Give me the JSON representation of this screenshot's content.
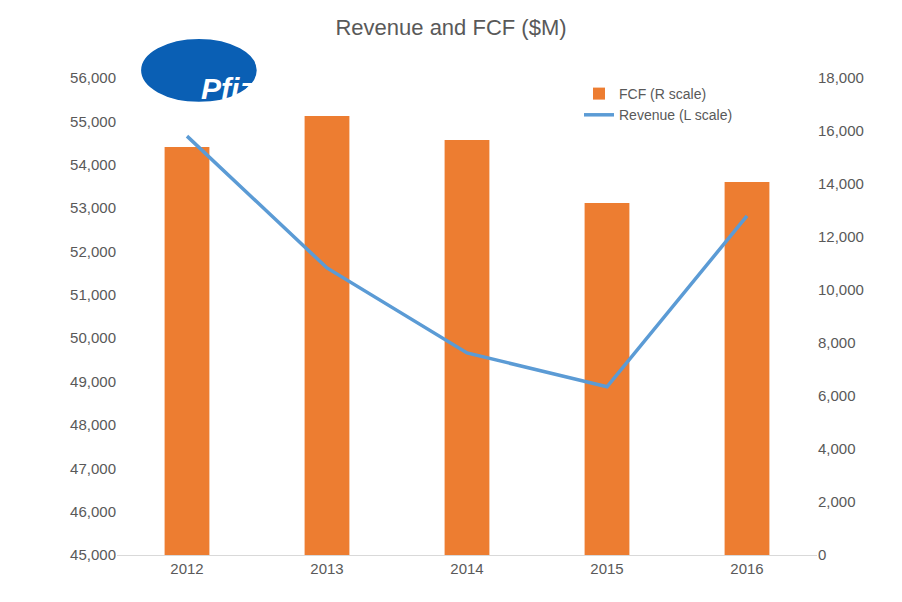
{
  "chart_data": {
    "type": "bar",
    "title": "Revenue and FCF ($M)",
    "annotations": [
      "Pfizer"
    ],
    "categories": [
      "2012",
      "2013",
      "2014",
      "2015",
      "2016"
    ],
    "series": [
      {
        "name": "FCF (R scale)",
        "type": "bar",
        "axis": "y2",
        "color": "#ed7d31",
        "values": [
          15400,
          16570,
          15660,
          13280,
          14080
        ]
      },
      {
        "name": "Revenue (L scale)",
        "type": "line",
        "axis": "y",
        "color": "#5b9bd5",
        "values": [
          54660,
          51620,
          49660,
          48880,
          52820
        ]
      }
    ],
    "ylim": [
      45000,
      56000
    ],
    "yticks": [
      {
        "value": 45000,
        "label": "45,000"
      },
      {
        "value": 46000,
        "label": "46,000"
      },
      {
        "value": 47000,
        "label": "47,000"
      },
      {
        "value": 48000,
        "label": "48,000"
      },
      {
        "value": 49000,
        "label": "49,000"
      },
      {
        "value": 50000,
        "label": "50,000"
      },
      {
        "value": 51000,
        "label": "51,000"
      },
      {
        "value": 52000,
        "label": "52,000"
      },
      {
        "value": 53000,
        "label": "53,000"
      },
      {
        "value": 54000,
        "label": "54,000"
      },
      {
        "value": 55000,
        "label": "55,000"
      },
      {
        "value": 56000,
        "label": "56,000"
      }
    ],
    "y2lim": [
      0,
      18000
    ],
    "y2ticks": [
      0,
      {
        "value": 2000,
        "label": "2,000"
      },
      {
        "value": 4000,
        "label": "4,000"
      },
      {
        "value": 6000,
        "label": "6,000"
      },
      {
        "value": 8000,
        "label": "8,000"
      },
      {
        "value": 10000,
        "label": "10,000"
      },
      {
        "value": 12000,
        "label": "12,000"
      },
      {
        "value": 14000,
        "label": "14,000"
      },
      {
        "value": 16000,
        "label": "16,000"
      },
      {
        "value": 18000,
        "label": "18,000"
      }
    ],
    "grid": false,
    "legend": "upper right"
  }
}
